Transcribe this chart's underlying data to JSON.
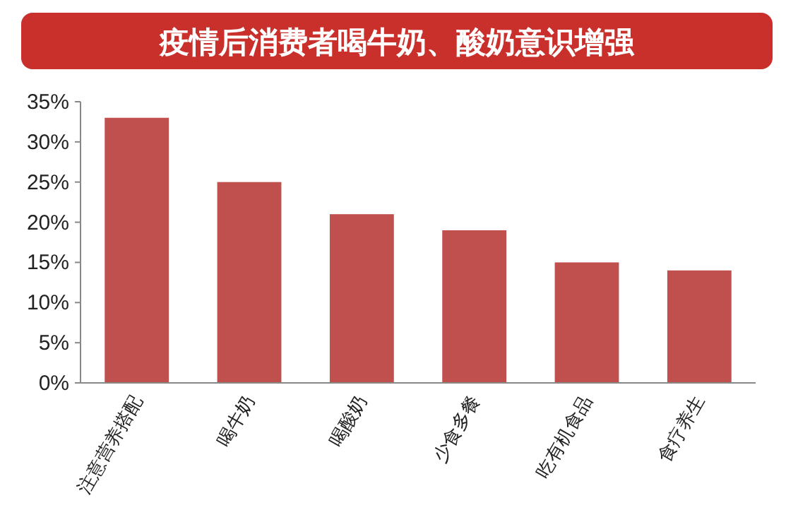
{
  "chart_data": {
    "type": "bar",
    "title": "疫情后消费者喝牛奶、酸奶意识增强",
    "categories": [
      "注意营养搭配",
      "喝牛奶",
      "喝酸奶",
      "少食多餐",
      "吃有机食品",
      "食疗养生"
    ],
    "values": [
      33,
      25,
      21,
      19,
      15,
      14
    ],
    "color": "#c0504d",
    "ylim": [
      0,
      35
    ],
    "yticks": [
      {
        "value": 0,
        "label": "0%"
      },
      {
        "value": 5,
        "label": "5%"
      },
      {
        "value": 10,
        "label": "10%"
      },
      {
        "value": 15,
        "label": "15%"
      },
      {
        "value": 20,
        "label": "20%"
      },
      {
        "value": 25,
        "label": "25%"
      },
      {
        "value": 30,
        "label": "30%"
      },
      {
        "value": 35,
        "label": "35%"
      }
    ],
    "grid": false
  }
}
